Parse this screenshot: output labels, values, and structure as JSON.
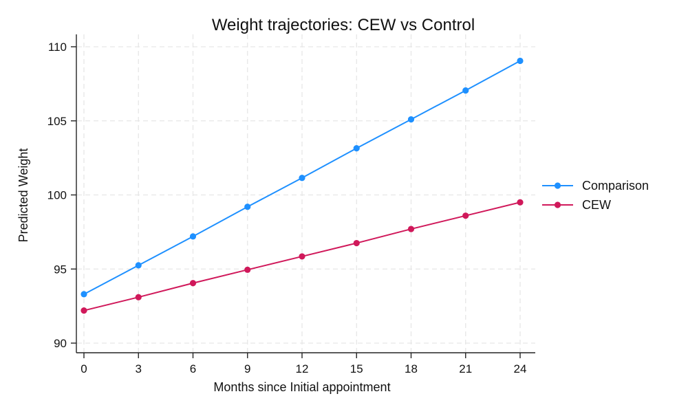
{
  "chart_data": {
    "type": "line",
    "title": "Weight trajectories: CEW vs Control",
    "xlabel": "Months since Initial appointment",
    "ylabel": "Predicted Weight",
    "x": [
      0,
      3,
      6,
      9,
      12,
      15,
      18,
      21,
      24
    ],
    "xticks": [
      0,
      3,
      6,
      9,
      12,
      15,
      18,
      21,
      24
    ],
    "yticks": [
      90,
      95,
      100,
      105,
      110
    ],
    "xlim": [
      0,
      24
    ],
    "ylim": [
      90,
      110
    ],
    "grid": true,
    "legend_position": "right",
    "series": [
      {
        "name": "Comparison",
        "color": "#1e90ff",
        "values": [
          93.3,
          95.25,
          97.2,
          99.2,
          101.15,
          103.15,
          105.1,
          107.05,
          109.05
        ]
      },
      {
        "name": "CEW",
        "color": "#d0185a",
        "values": [
          92.2,
          93.1,
          94.05,
          94.95,
          95.85,
          96.75,
          97.7,
          98.6,
          99.5
        ]
      }
    ]
  }
}
